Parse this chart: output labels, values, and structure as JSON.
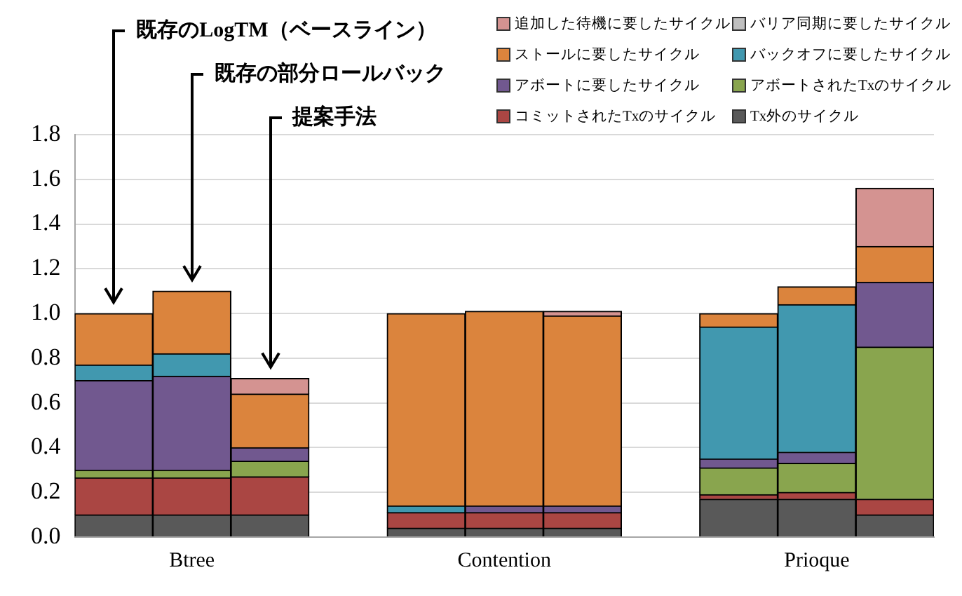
{
  "chart_data": {
    "type": "bar",
    "stacked": true,
    "categories": [
      null,
      "Btree",
      null,
      null,
      null,
      "Contention",
      null,
      null,
      null,
      "Prioque",
      null
    ],
    "series": [
      {
        "name": "Tx外のサイクル",
        "color": "#595959",
        "values": [
          0.1,
          0.1,
          0.1,
          null,
          0.04,
          0.04,
          0.04,
          null,
          0.17,
          0.17,
          0.1
        ]
      },
      {
        "name": "コミットされたTxのサイクル",
        "color": "#aa4643",
        "values": [
          0.165,
          0.165,
          0.17,
          null,
          0.07,
          0.07,
          0.07,
          null,
          0.02,
          0.03,
          0.07
        ]
      },
      {
        "name": "アボートされたTxのサイクル",
        "color": "#89a54e",
        "values": [
          0.035,
          0.035,
          0.07,
          null,
          0,
          0,
          0,
          null,
          0.12,
          0.13,
          0.68
        ]
      },
      {
        "name": "アボートに要したサイクル",
        "color": "#71588f",
        "values": [
          0.4,
          0.42,
          0.06,
          null,
          0,
          0.03,
          0.03,
          null,
          0.04,
          0.05,
          0.29
        ]
      },
      {
        "name": "バックオフに要したサイクル",
        "color": "#4198af",
        "values": [
          0.07,
          0.1,
          0,
          null,
          0.03,
          0,
          0,
          null,
          0.59,
          0.66,
          0
        ]
      },
      {
        "name": "ストールに要したサイクル",
        "color": "#db843d",
        "values": [
          0.23,
          0.28,
          0.24,
          null,
          0.86,
          0.87,
          0.85,
          null,
          0.06,
          0.08,
          0.16
        ]
      },
      {
        "name": "バリア同期に要したサイクル",
        "color": "#bfbfbf",
        "values": [
          0,
          0,
          0,
          null,
          0,
          0,
          0,
          null,
          0,
          0,
          0
        ]
      },
      {
        "name": "追加した待機に要したサイクル",
        "color": "#d49391",
        "values": [
          0,
          0,
          0.07,
          null,
          0,
          0,
          0.02,
          null,
          0,
          0,
          0.26
        ]
      }
    ],
    "ylim": [
      0,
      1.8
    ],
    "yticks": [
      {
        "value": 0,
        "label": "0.0"
      },
      0.2,
      0.4,
      0.6,
      0.8,
      {
        "value": 1,
        "label": "1.0"
      },
      1.2,
      1.4,
      1.6,
      1.8
    ],
    "grid": "y",
    "legend": "top right",
    "annotations": [
      "既存のLogTM（ベースライン）",
      "既存の部分ロールバック",
      "提案手法"
    ]
  }
}
